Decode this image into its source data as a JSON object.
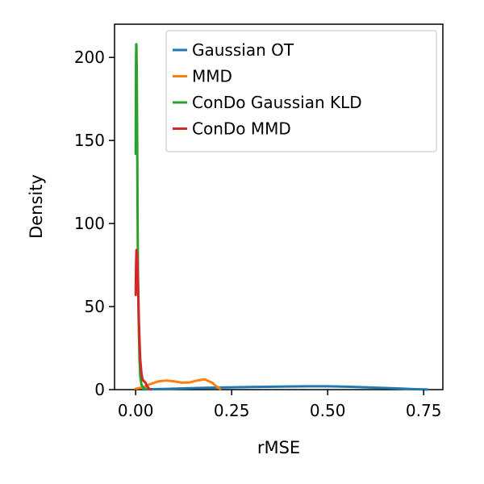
{
  "chart_data": {
    "type": "line",
    "xlabel": "rMSE",
    "ylabel": "Density",
    "xlim": [
      -0.055,
      0.8
    ],
    "ylim": [
      0,
      220
    ],
    "x_ticks": [
      0.0,
      0.25,
      0.5,
      0.75
    ],
    "x_tick_labels": [
      "0.00",
      "0.25",
      "0.50",
      "0.75"
    ],
    "y_ticks": [
      0,
      50,
      100,
      150,
      200
    ],
    "y_tick_labels": [
      "0",
      "50",
      "100",
      "150",
      "200"
    ],
    "grid": false,
    "legend_position": "top-right",
    "series": [
      {
        "name": "Gaussian OT",
        "color": "#1f77b4",
        "points": [
          [
            0.02,
            0.1
          ],
          [
            0.08,
            0.4
          ],
          [
            0.15,
            0.9
          ],
          [
            0.22,
            1.3
          ],
          [
            0.3,
            1.6
          ],
          [
            0.38,
            1.8
          ],
          [
            0.45,
            2.0
          ],
          [
            0.5,
            2.0
          ],
          [
            0.56,
            1.7
          ],
          [
            0.62,
            1.2
          ],
          [
            0.68,
            0.7
          ],
          [
            0.72,
            0.3
          ],
          [
            0.76,
            0.05
          ]
        ]
      },
      {
        "name": "MMD",
        "color": "#ff7f0e",
        "points": [
          [
            0.0,
            0.5
          ],
          [
            0.02,
            1.5
          ],
          [
            0.04,
            3.5
          ],
          [
            0.06,
            5.0
          ],
          [
            0.08,
            5.5
          ],
          [
            0.1,
            5.0
          ],
          [
            0.12,
            4.2
          ],
          [
            0.14,
            4.3
          ],
          [
            0.16,
            5.5
          ],
          [
            0.18,
            6.2
          ],
          [
            0.2,
            4.0
          ],
          [
            0.21,
            2.0
          ],
          [
            0.22,
            0.5
          ]
        ]
      },
      {
        "name": "ConDo Gaussian KLD",
        "color": "#2ca02c",
        "points": [
          [
            0.0,
            142
          ],
          [
            0.0005,
            175
          ],
          [
            0.001,
            200
          ],
          [
            0.0015,
            208
          ],
          [
            0.002,
            207
          ],
          [
            0.003,
            190
          ],
          [
            0.004,
            150
          ],
          [
            0.005,
            105
          ],
          [
            0.006,
            70
          ],
          [
            0.008,
            38
          ],
          [
            0.01,
            18
          ],
          [
            0.012,
            8
          ],
          [
            0.015,
            3
          ],
          [
            0.02,
            1
          ],
          [
            0.03,
            0.2
          ]
        ]
      },
      {
        "name": "ConDo MMD",
        "color": "#d62728",
        "points": [
          [
            0.0,
            57
          ],
          [
            0.001,
            75
          ],
          [
            0.002,
            84
          ],
          [
            0.004,
            80
          ],
          [
            0.006,
            65
          ],
          [
            0.008,
            45
          ],
          [
            0.01,
            30
          ],
          [
            0.012,
            18
          ],
          [
            0.015,
            10
          ],
          [
            0.018,
            6
          ],
          [
            0.022,
            5
          ],
          [
            0.026,
            4
          ],
          [
            0.03,
            2
          ],
          [
            0.035,
            0.5
          ],
          [
            0.04,
            0.1
          ]
        ]
      }
    ]
  }
}
